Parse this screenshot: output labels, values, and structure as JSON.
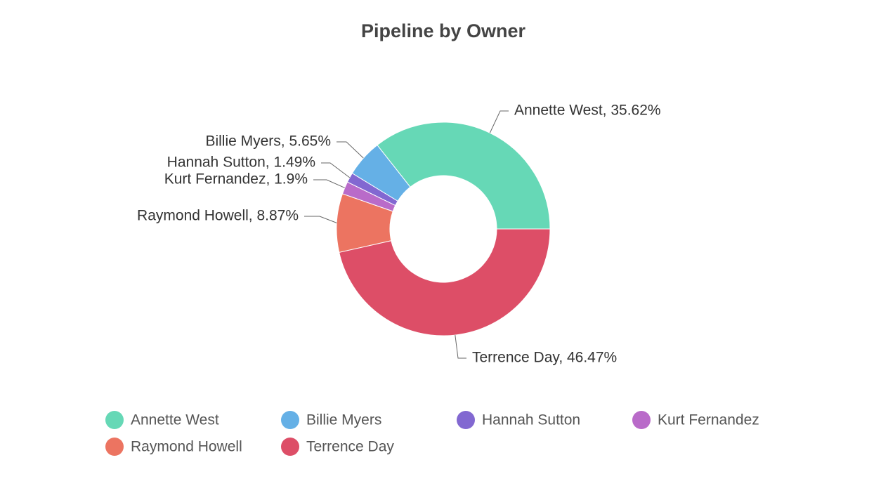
{
  "chart_data": {
    "type": "donut",
    "title": "Pipeline by Owner",
    "categories": [
      "Annette West",
      "Billie Myers",
      "Hannah Sutton",
      "Kurt Fernandez",
      "Raymond Howell",
      "Terrence Day"
    ],
    "values": [
      35.62,
      5.65,
      1.49,
      1.9,
      8.87,
      46.47
    ],
    "value_labels": [
      "Annette West, 35.62%",
      "Billie Myers, 5.65%",
      "Hannah Sutton, 1.49%",
      "Kurt Fernandez, 1.9%",
      "Raymond Howell, 8.87%",
      "Terrence Day, 46.47%"
    ],
    "colors": [
      "#66d8b6",
      "#65b0e6",
      "#8268d1",
      "#b96bc9",
      "#ec7461",
      "#dd4e67"
    ],
    "legend": "bottom"
  }
}
